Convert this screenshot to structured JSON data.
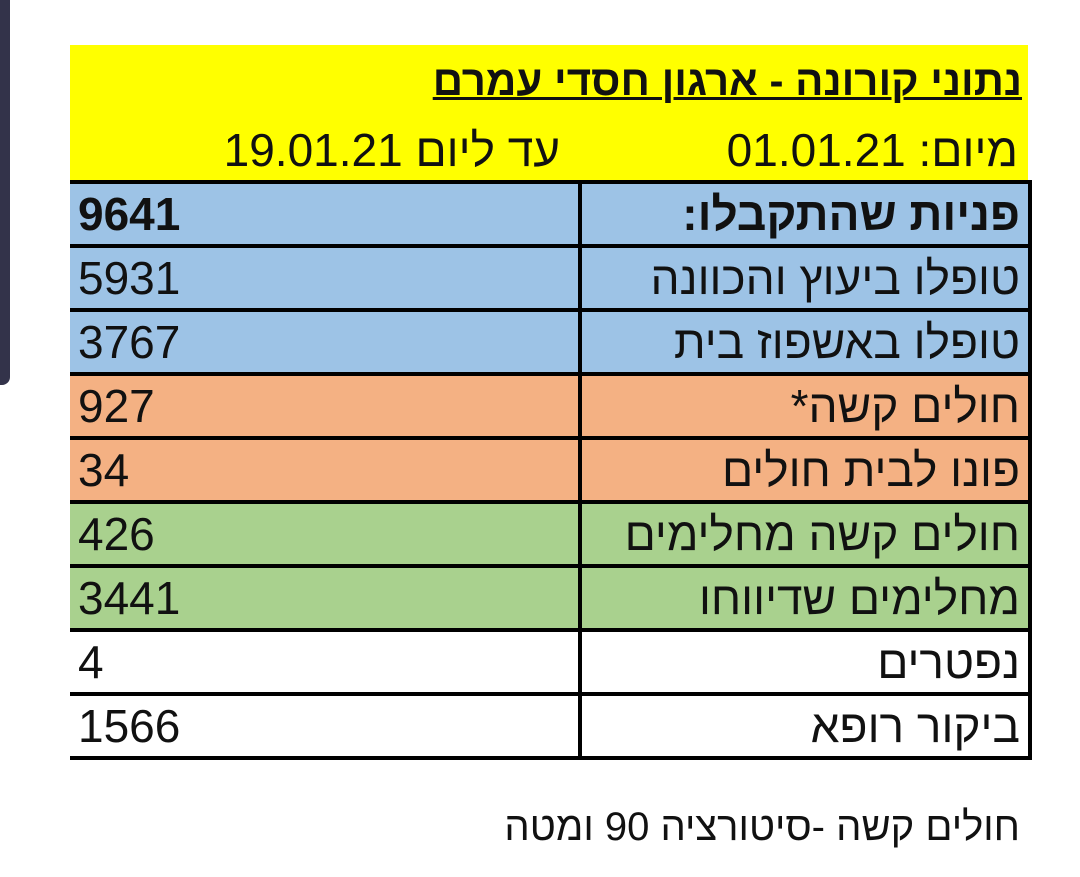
{
  "title": "נתוני קורונה - ארגון חסדי עמרם",
  "from_date": "מיום: 01.01.21",
  "to_date": "עד ליום 19.01.21",
  "rows": [
    {
      "label": "פניות שהתקבלו:",
      "value": "9641",
      "color": "#9dc3e6"
    },
    {
      "label": "טופלו ביעוץ והכוונה",
      "value": "5931",
      "color": "#9dc3e6"
    },
    {
      "label": "טופלו באשפוז בית",
      "value": "3767",
      "color": "#9dc3e6"
    },
    {
      "label": "חולים קשה*",
      "value": "927",
      "color": "#f4b183"
    },
    {
      "label": "פונו לבית חולים",
      "value": "34",
      "color": "#f4b183"
    },
    {
      "label": "חולים קשה מחלימים",
      "value": "426",
      "color": "#a9d18e"
    },
    {
      "label": "מחלימים שדיווחו",
      "value": "3441",
      "color": "#a9d18e"
    },
    {
      "label": "נפטרים",
      "value": "4",
      "color": "#ffffff"
    },
    {
      "label": "ביקור רופא",
      "value": "1566",
      "color": "#ffffff"
    }
  ],
  "footnote": "חולים קשה -סיטורציה 90 ומטה"
}
